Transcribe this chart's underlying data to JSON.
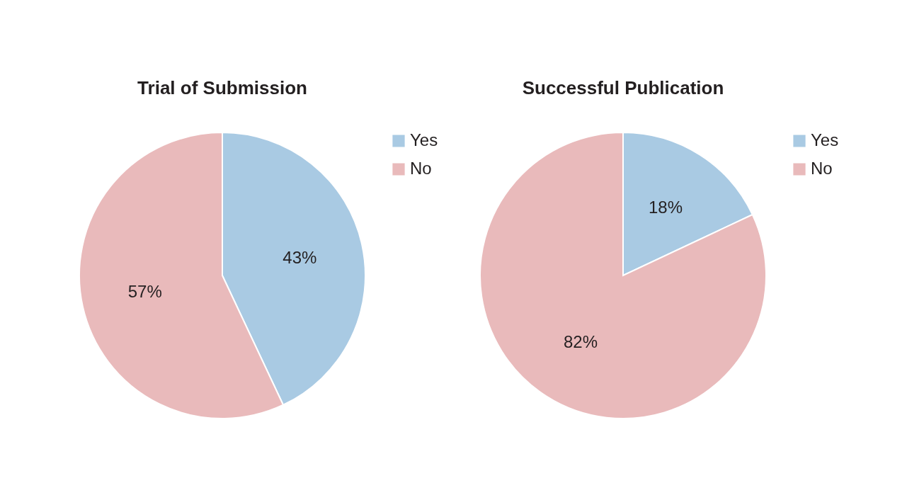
{
  "chart_data": [
    {
      "type": "pie",
      "title": "Trial of Submission",
      "categories": [
        "Yes",
        "No"
      ],
      "values": [
        43,
        57
      ],
      "colors": [
        "#a9cae3",
        "#e9babb"
      ],
      "value_labels": [
        "43%",
        "57%"
      ],
      "legend": "right"
    },
    {
      "type": "pie",
      "title": "Successful Publication",
      "categories": [
        "Yes",
        "No"
      ],
      "values": [
        18,
        82
      ],
      "colors": [
        "#a9cae3",
        "#e9babb"
      ],
      "value_labels": [
        "18%",
        "82%"
      ],
      "legend": "right"
    }
  ]
}
